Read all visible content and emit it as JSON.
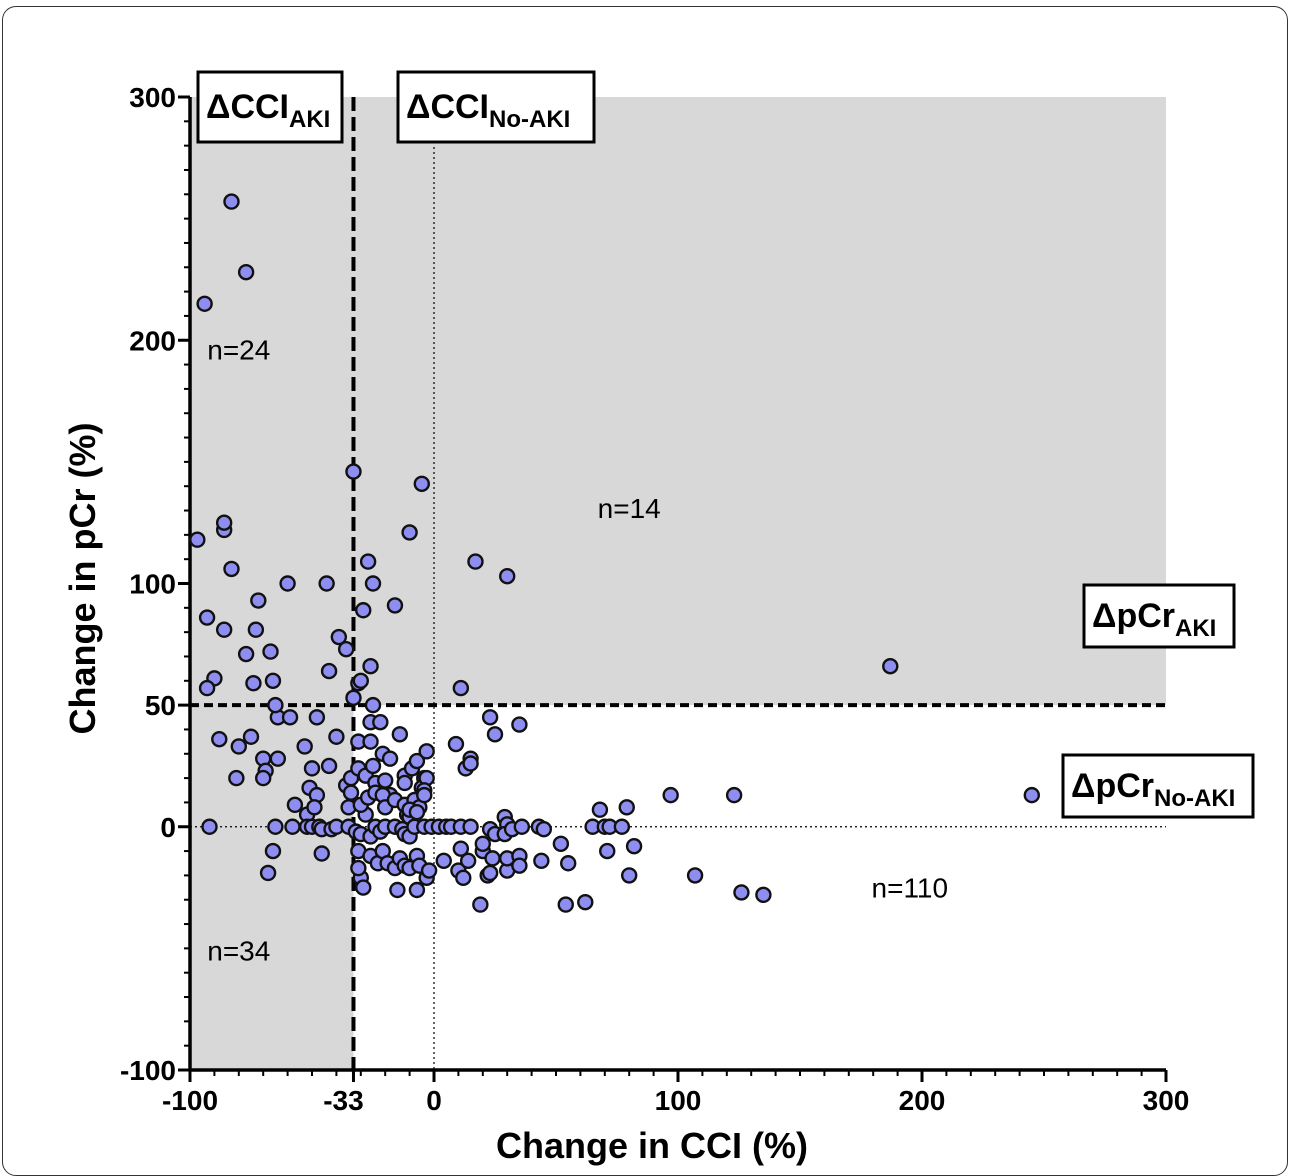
{
  "chart_data": {
    "type": "scatter",
    "xlabel": "Change in CCI (%)",
    "ylabel": "Change in pCr (%)",
    "xlim": [
      -100,
      300
    ],
    "ylim": [
      -100,
      300
    ],
    "x_ticks": [
      -100,
      -33,
      0,
      100,
      200,
      300
    ],
    "x_tick_labels": [
      "-100",
      "-33",
      "0",
      "100",
      "200",
      "300"
    ],
    "y_ticks": [
      -100,
      0,
      50,
      100,
      200,
      300
    ],
    "y_tick_labels": [
      "-100",
      "0",
      "50",
      "100",
      "200",
      "300"
    ],
    "thresholds": {
      "cci_aki": {
        "axis": "x",
        "value": -33,
        "style": "dashed",
        "label_main": "ΔCCI",
        "label_sub": "AKI"
      },
      "cci_no_aki": {
        "axis": "x",
        "value": 0,
        "style": "dotted",
        "label_main": "ΔCCI",
        "label_sub": "No-AKI"
      },
      "pcr_aki": {
        "axis": "y",
        "value": 50,
        "style": "dashed",
        "label_main": "ΔpCr",
        "label_sub": "AKI"
      },
      "pcr_no_aki": {
        "axis": "y",
        "value": 0,
        "style": "dotted",
        "label_main": "ΔpCr",
        "label_sub": "No-AKI"
      }
    },
    "shaded_region": "AKI by either criterion (ΔCCI ≤ -33% or ΔpCr ≥ 50%)",
    "point_color": "#8e8ef0",
    "point_stroke": "#111111",
    "shade_color": "#d8d8d8",
    "annotations": [
      {
        "text": "n=24",
        "x": -80,
        "y": 192
      },
      {
        "text": "n=14",
        "x": 80,
        "y": 127
      },
      {
        "text": "n=34",
        "x": -80,
        "y": -55
      },
      {
        "text": "n=110",
        "x": 195,
        "y": -29
      }
    ],
    "points": [
      [
        -83,
        257
      ],
      [
        -77,
        228
      ],
      [
        -94,
        215
      ],
      [
        -97,
        118
      ],
      [
        -86,
        122
      ],
      [
        -86,
        125
      ],
      [
        -83,
        106
      ],
      [
        -93,
        86
      ],
      [
        -86,
        81
      ],
      [
        -72,
        93
      ],
      [
        -60,
        100
      ],
      [
        -44,
        100
      ],
      [
        -39,
        78
      ],
      [
        -36,
        73
      ],
      [
        -33,
        146
      ],
      [
        -5,
        141
      ],
      [
        -10,
        121
      ],
      [
        -27,
        109
      ],
      [
        -25,
        100
      ],
      [
        -29,
        89
      ],
      [
        -16,
        91
      ],
      [
        17,
        109
      ],
      [
        30,
        103
      ],
      [
        -90,
        61
      ],
      [
        -93,
        57
      ],
      [
        -77,
        71
      ],
      [
        -73,
        81
      ],
      [
        -67,
        72
      ],
      [
        -66,
        60
      ],
      [
        -74,
        59
      ],
      [
        -43,
        64
      ],
      [
        -26,
        66
      ],
      [
        -31,
        59
      ],
      [
        -33,
        53
      ],
      [
        -30,
        60
      ],
      [
        11,
        57
      ],
      [
        187,
        66
      ],
      [
        -88,
        36
      ],
      [
        -80,
        33
      ],
      [
        -75,
        37
      ],
      [
        -70,
        28
      ],
      [
        -69,
        23
      ],
      [
        -64,
        28
      ],
      [
        -81,
        20
      ],
      [
        -70,
        20
      ],
      [
        -64,
        45
      ],
      [
        -65,
        50
      ],
      [
        -59,
        45
      ],
      [
        -53,
        33
      ],
      [
        -50,
        24
      ],
      [
        -51,
        16
      ],
      [
        -48,
        45
      ],
      [
        -43,
        25
      ],
      [
        -40,
        37
      ],
      [
        -36,
        17
      ],
      [
        -34,
        20
      ],
      [
        -31,
        35
      ],
      [
        -31,
        24
      ],
      [
        -28,
        21
      ],
      [
        -25,
        50
      ],
      [
        -26,
        43
      ],
      [
        -22,
        43
      ],
      [
        -26,
        35
      ],
      [
        -21,
        30
      ],
      [
        -18,
        28
      ],
      [
        -14,
        38
      ],
      [
        -25,
        25
      ],
      [
        -24,
        18
      ],
      [
        -20,
        19
      ],
      [
        -18,
        13
      ],
      [
        -12,
        21
      ],
      [
        -12,
        18
      ],
      [
        -9,
        24
      ],
      [
        -7,
        27
      ],
      [
        -4,
        20
      ],
      [
        -5,
        16
      ],
      [
        -3,
        31
      ],
      [
        -3,
        20
      ],
      [
        -4,
        15
      ],
      [
        9,
        34
      ],
      [
        13,
        24
      ],
      [
        15,
        28
      ],
      [
        15,
        26
      ],
      [
        23,
        45
      ],
      [
        25,
        38
      ],
      [
        35,
        42
      ],
      [
        -57,
        9
      ],
      [
        -48,
        13
      ],
      [
        -52,
        5
      ],
      [
        -49,
        8
      ],
      [
        -35,
        8
      ],
      [
        -34,
        14
      ],
      [
        -28,
        5
      ],
      [
        -30,
        9
      ],
      [
        -27,
        12
      ],
      [
        -24,
        14
      ],
      [
        -21,
        13
      ],
      [
        -20,
        8
      ],
      [
        -16,
        11
      ],
      [
        -12,
        9
      ],
      [
        -11,
        5
      ],
      [
        -10,
        4
      ],
      [
        -8,
        11
      ],
      [
        -6,
        8
      ],
      [
        -4,
        13
      ],
      [
        -10,
        7
      ],
      [
        -7,
        6
      ],
      [
        97,
        13
      ],
      [
        123,
        13
      ],
      [
        245,
        13
      ],
      [
        68,
        7
      ],
      [
        79,
        8
      ],
      [
        29,
        4
      ],
      [
        30,
        1
      ],
      [
        -92,
        0
      ],
      [
        -65,
        0
      ],
      [
        -58,
        0
      ],
      [
        -52,
        0
      ],
      [
        -50,
        0
      ],
      [
        -47,
        0
      ],
      [
        -46,
        -1
      ],
      [
        -42,
        -1
      ],
      [
        -40,
        0
      ],
      [
        -35,
        0
      ],
      [
        -32,
        -2
      ],
      [
        -30,
        -3
      ],
      [
        -26,
        -4
      ],
      [
        -24,
        0
      ],
      [
        -22,
        -2
      ],
      [
        -20,
        0
      ],
      [
        -16,
        0
      ],
      [
        -13,
        -1
      ],
      [
        -12,
        -3
      ],
      [
        -10,
        -4
      ],
      [
        -8,
        0
      ],
      [
        -4,
        0
      ],
      [
        -1,
        0
      ],
      [
        2,
        0
      ],
      [
        5,
        0
      ],
      [
        7,
        0
      ],
      [
        11,
        0
      ],
      [
        15,
        0
      ],
      [
        23,
        -1
      ],
      [
        25,
        -3
      ],
      [
        29,
        -3
      ],
      [
        32,
        -1
      ],
      [
        36,
        0
      ],
      [
        43,
        0
      ],
      [
        45,
        -1
      ],
      [
        52,
        -7
      ],
      [
        65,
        0
      ],
      [
        70,
        0
      ],
      [
        72,
        0
      ],
      [
        77,
        0
      ],
      [
        -66,
        -10
      ],
      [
        -68,
        -19
      ],
      [
        -46,
        -11
      ],
      [
        -31,
        -10
      ],
      [
        -30,
        -21
      ],
      [
        -29,
        -25
      ],
      [
        -26,
        -12
      ],
      [
        -23,
        -15
      ],
      [
        -21,
        -10
      ],
      [
        -19,
        -15
      ],
      [
        -16,
        -17
      ],
      [
        -14,
        -13
      ],
      [
        -12,
        -16
      ],
      [
        -10,
        -17
      ],
      [
        -7,
        -12
      ],
      [
        -7,
        -26
      ],
      [
        -6,
        -16
      ],
      [
        -3,
        -21
      ],
      [
        -2,
        -18
      ],
      [
        4,
        -14
      ],
      [
        10,
        -18
      ],
      [
        11,
        -9
      ],
      [
        12,
        -21
      ],
      [
        14,
        -14
      ],
      [
        20,
        -10
      ],
      [
        20,
        -7
      ],
      [
        22,
        -20
      ],
      [
        23,
        -19
      ],
      [
        24,
        -13
      ],
      [
        30,
        -18
      ],
      [
        30,
        -13
      ],
      [
        35,
        -12
      ],
      [
        35,
        -16
      ],
      [
        44,
        -14
      ],
      [
        55,
        -15
      ],
      [
        71,
        -10
      ],
      [
        82,
        -8
      ],
      [
        80,
        -20
      ],
      [
        107,
        -20
      ],
      [
        126,
        -27
      ],
      [
        135,
        -28
      ],
      [
        19,
        -32
      ],
      [
        54,
        -32
      ],
      [
        62,
        -31
      ],
      [
        -15,
        -26
      ],
      [
        -31,
        -17
      ]
    ]
  }
}
